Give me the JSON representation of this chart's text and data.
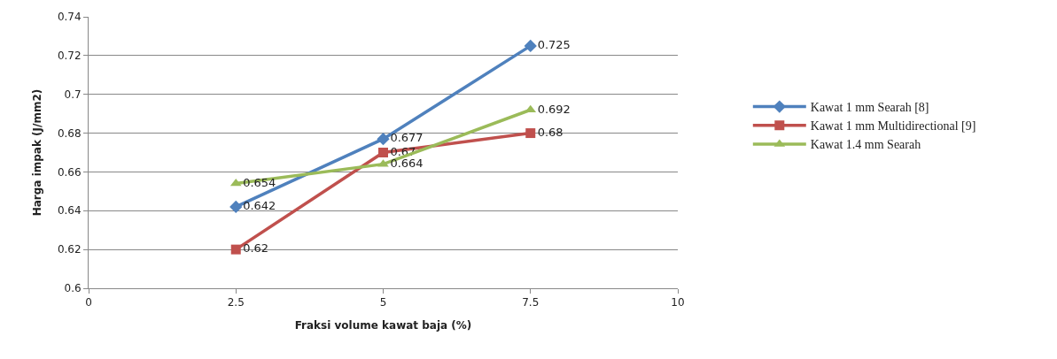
{
  "chart_data": {
    "type": "line",
    "xlabel": "Fraksi volume kawat baja (%)",
    "ylabel": "Harga impak (J/mm2)",
    "x": [
      2.5,
      5,
      7.5
    ],
    "series": [
      {
        "name": "Kawat 1 mm Searah [8]",
        "color": "#4f81bd",
        "marker": "diamond",
        "values": [
          0.642,
          0.677,
          0.725
        ]
      },
      {
        "name": "Kawat 1 mm Multidirectional [9]",
        "color": "#c0504d",
        "marker": "square",
        "values": [
          0.62,
          0.67,
          0.68
        ]
      },
      {
        "name": "Kawat 1.4 mm Searah",
        "color": "#9bbb59",
        "marker": "triangle",
        "values": [
          0.654,
          0.664,
          0.692
        ]
      }
    ],
    "xlim": [
      0,
      10
    ],
    "xticks": [
      0,
      2.5,
      5,
      7.5,
      10
    ],
    "ylim": [
      0.6,
      0.74
    ],
    "yticks": [
      0.6,
      0.62,
      0.64,
      0.66,
      0.68,
      0.7,
      0.72,
      0.74
    ],
    "grid": "y",
    "legend": "right",
    "data_labels": true,
    "line_style": "solid"
  }
}
